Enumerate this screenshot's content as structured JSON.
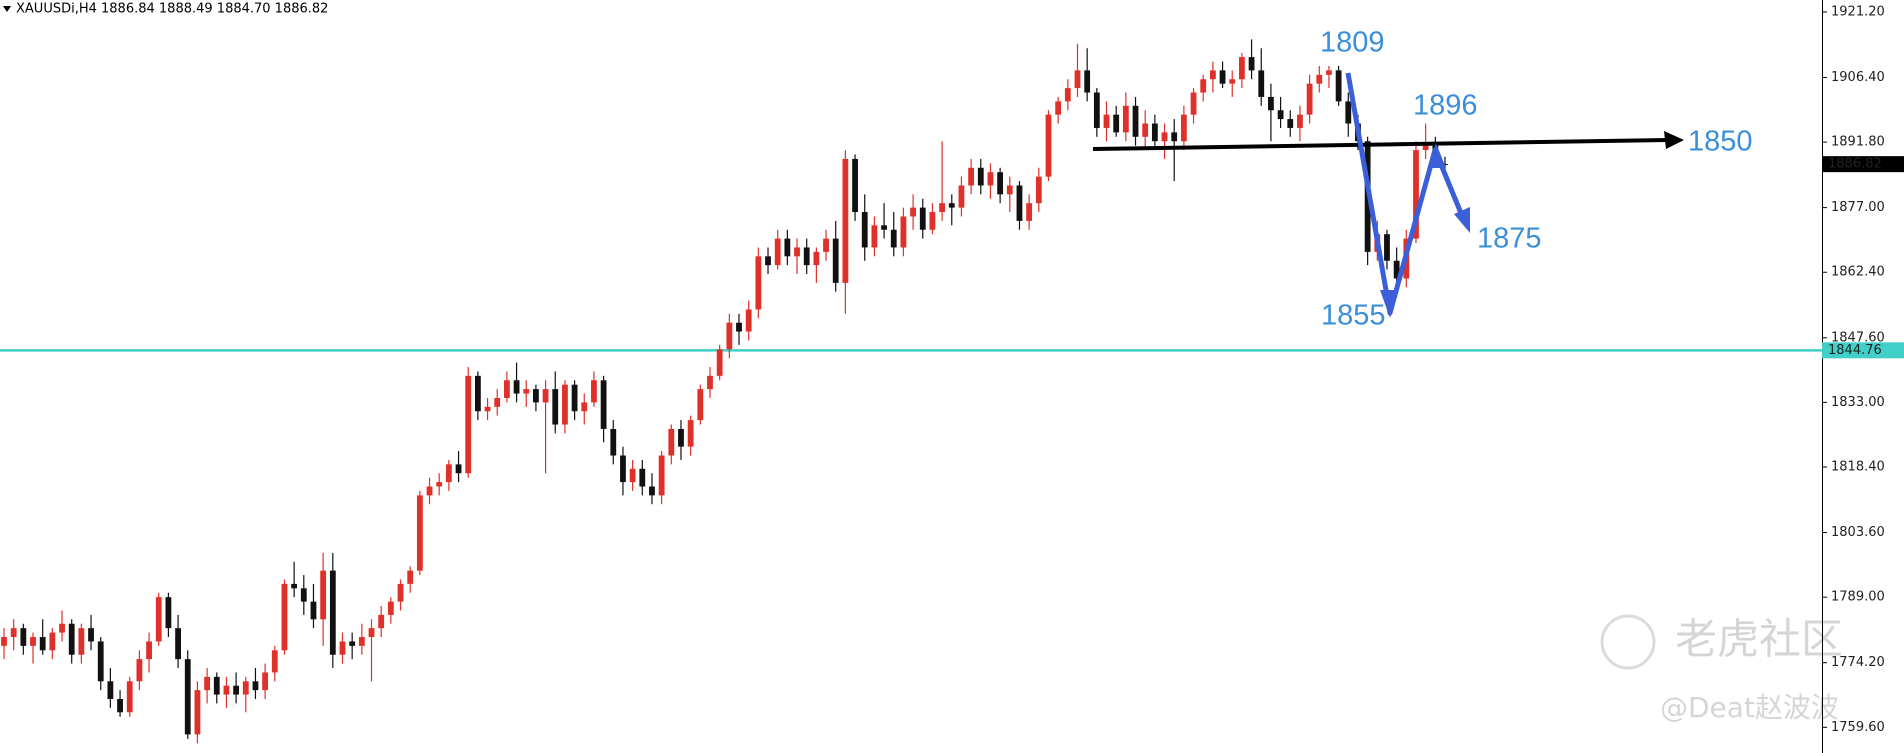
{
  "chart_data": {
    "type": "candlestick",
    "title": "XAUUSDi,H4  1886.84 1888.49 1884.70 1886.82",
    "up_color": "#e0302a",
    "down_color": "#111111",
    "ylim": [
      1753.8,
      1923.9
    ],
    "yticks": [
      {
        "value": 1921.2,
        "label": "1921.20"
      },
      {
        "value": 1906.4,
        "label": "1906.40"
      },
      {
        "value": 1891.8,
        "label": "1891.80"
      },
      {
        "value": 1877,
        "label": "1877.00"
      },
      {
        "value": 1862.4,
        "label": "1862.40"
      },
      {
        "value": 1847.6,
        "label": "1847.60"
      },
      {
        "value": 1833,
        "label": "1833.00"
      },
      {
        "value": 1818.4,
        "label": "1818.40"
      },
      {
        "value": 1803.6,
        "label": "1803.60"
      },
      {
        "value": 1789,
        "label": "1789.00"
      },
      {
        "value": 1774.2,
        "label": "1774.20"
      },
      {
        "value": 1759.6,
        "label": "1759.60"
      }
    ],
    "reference_line": {
      "value": 1844.76,
      "color": "#40d0c8"
    },
    "last_price": 1886.82,
    "annotations": [
      "1809",
      "1896",
      "1850",
      "1875",
      "1855"
    ],
    "ohlc": [
      [
        1778,
        1782,
        1775,
        1780
      ],
      [
        1780,
        1784,
        1777,
        1782
      ],
      [
        1782,
        1783,
        1776,
        1778
      ],
      [
        1778,
        1781,
        1774,
        1780
      ],
      [
        1780,
        1784,
        1776,
        1777
      ],
      [
        1777,
        1782,
        1775,
        1781
      ],
      [
        1781,
        1786,
        1779,
        1783
      ],
      [
        1783,
        1784,
        1774,
        1776
      ],
      [
        1776,
        1783,
        1774,
        1782
      ],
      [
        1782,
        1785,
        1777,
        1779
      ],
      [
        1779,
        1780,
        1768,
        1770
      ],
      [
        1770,
        1773,
        1764,
        1766
      ],
      [
        1766,
        1768,
        1762,
        1763
      ],
      [
        1763,
        1771,
        1762,
        1770
      ],
      [
        1770,
        1777,
        1768,
        1775
      ],
      [
        1775,
        1781,
        1772,
        1779
      ],
      [
        1779,
        1790,
        1778,
        1789
      ],
      [
        1789,
        1790,
        1780,
        1782
      ],
      [
        1782,
        1785,
        1773,
        1775
      ],
      [
        1775,
        1777,
        1757,
        1758
      ],
      [
        1758,
        1770,
        1756,
        1768
      ],
      [
        1768,
        1773,
        1765,
        1771
      ],
      [
        1771,
        1772,
        1765,
        1767
      ],
      [
        1767,
        1771,
        1764,
        1769
      ],
      [
        1769,
        1772,
        1765,
        1767
      ],
      [
        1767,
        1771,
        1763,
        1770
      ],
      [
        1770,
        1773,
        1766,
        1768
      ],
      [
        1768,
        1774,
        1766,
        1772
      ],
      [
        1772,
        1778,
        1770,
        1777
      ],
      [
        1777,
        1793,
        1776,
        1792
      ],
      [
        1792,
        1797,
        1789,
        1791
      ],
      [
        1791,
        1794,
        1785,
        1788
      ],
      [
        1788,
        1792,
        1782,
        1784
      ],
      [
        1784,
        1799,
        1778,
        1795
      ],
      [
        1795,
        1799,
        1773,
        1776
      ],
      [
        1776,
        1781,
        1774,
        1779
      ],
      [
        1779,
        1781,
        1775,
        1778
      ],
      [
        1778,
        1783,
        1776,
        1780
      ],
      [
        1780,
        1784,
        1770,
        1782
      ],
      [
        1782,
        1787,
        1780,
        1785
      ],
      [
        1785,
        1789,
        1783,
        1788
      ],
      [
        1788,
        1793,
        1786,
        1792
      ],
      [
        1792,
        1796,
        1790,
        1795
      ],
      [
        1795,
        1813,
        1794,
        1812
      ],
      [
        1812,
        1816,
        1810,
        1814
      ],
      [
        1814,
        1817,
        1812,
        1815
      ],
      [
        1815,
        1820,
        1813,
        1819
      ],
      [
        1819,
        1822,
        1815,
        1817
      ],
      [
        1817,
        1841,
        1816,
        1839
      ],
      [
        1839,
        1840,
        1829,
        1831
      ],
      [
        1831,
        1834,
        1829,
        1832
      ],
      [
        1832,
        1836,
        1830,
        1834
      ],
      [
        1834,
        1840,
        1833,
        1838
      ],
      [
        1838,
        1842,
        1833,
        1835
      ],
      [
        1835,
        1838,
        1832,
        1836
      ],
      [
        1836,
        1837,
        1831,
        1833
      ],
      [
        1833,
        1838,
        1817,
        1836
      ],
      [
        1836,
        1840,
        1826,
        1828
      ],
      [
        1828,
        1838,
        1826,
        1837
      ],
      [
        1837,
        1838,
        1829,
        1831
      ],
      [
        1831,
        1835,
        1828,
        1833
      ],
      [
        1833,
        1840,
        1832,
        1838
      ],
      [
        1838,
        1839,
        1824,
        1827
      ],
      [
        1827,
        1829,
        1819,
        1821
      ],
      [
        1821,
        1823,
        1812,
        1815
      ],
      [
        1815,
        1820,
        1813,
        1818
      ],
      [
        1818,
        1820,
        1812,
        1814
      ],
      [
        1814,
        1817,
        1810,
        1812
      ],
      [
        1812,
        1822,
        1810,
        1821
      ],
      [
        1821,
        1828,
        1819,
        1827
      ],
      [
        1827,
        1829,
        1820,
        1823
      ],
      [
        1823,
        1830,
        1821,
        1829
      ],
      [
        1829,
        1837,
        1828,
        1836
      ],
      [
        1836,
        1841,
        1834,
        1839
      ],
      [
        1839,
        1846,
        1838,
        1845
      ],
      [
        1845,
        1853,
        1843,
        1851
      ],
      [
        1851,
        1853,
        1846,
        1849
      ],
      [
        1849,
        1856,
        1847,
        1854
      ],
      [
        1854,
        1868,
        1852,
        1866
      ],
      [
        1866,
        1868,
        1862,
        1864
      ],
      [
        1864,
        1872,
        1863,
        1870
      ],
      [
        1870,
        1872,
        1864,
        1866
      ],
      [
        1866,
        1870,
        1862,
        1868
      ],
      [
        1868,
        1870,
        1862,
        1864
      ],
      [
        1864,
        1868,
        1860,
        1867
      ],
      [
        1867,
        1872,
        1865,
        1870
      ],
      [
        1870,
        1874,
        1858,
        1860
      ],
      [
        1860,
        1890,
        1853,
        1888
      ],
      [
        1888,
        1889,
        1874,
        1876
      ],
      [
        1876,
        1880,
        1865,
        1868
      ],
      [
        1868,
        1875,
        1866,
        1873
      ],
      [
        1873,
        1878,
        1870,
        1872
      ],
      [
        1872,
        1876,
        1866,
        1868
      ],
      [
        1868,
        1877,
        1866,
        1875
      ],
      [
        1875,
        1880,
        1872,
        1877
      ],
      [
        1877,
        1879,
        1870,
        1872
      ],
      [
        1872,
        1878,
        1871,
        1876
      ],
      [
        1876,
        1892,
        1874,
        1878
      ],
      [
        1878,
        1880,
        1873,
        1877
      ],
      [
        1877,
        1884,
        1875,
        1882
      ],
      [
        1882,
        1888,
        1880,
        1886
      ],
      [
        1886,
        1888,
        1880,
        1882
      ],
      [
        1882,
        1887,
        1879,
        1885
      ],
      [
        1885,
        1886,
        1878,
        1880
      ],
      [
        1880,
        1884,
        1876,
        1882
      ],
      [
        1882,
        1883,
        1872,
        1874
      ],
      [
        1874,
        1880,
        1872,
        1878
      ],
      [
        1878,
        1886,
        1876,
        1884
      ],
      [
        1884,
        1899,
        1883,
        1898
      ],
      [
        1898,
        1902,
        1896,
        1901
      ],
      [
        1901,
        1906,
        1899,
        1904
      ],
      [
        1904,
        1914,
        1902,
        1908
      ],
      [
        1908,
        1913,
        1901,
        1903
      ],
      [
        1903,
        1904,
        1893,
        1895
      ],
      [
        1895,
        1901,
        1892,
        1898
      ],
      [
        1898,
        1900,
        1893,
        1894
      ],
      [
        1894,
        1903,
        1892,
        1900
      ],
      [
        1900,
        1902,
        1891,
        1893
      ],
      [
        1893,
        1899,
        1890,
        1896
      ],
      [
        1896,
        1898,
        1890,
        1892
      ],
      [
        1892,
        1896,
        1888,
        1894
      ],
      [
        1894,
        1897,
        1883,
        1892
      ],
      [
        1892,
        1900,
        1890,
        1898
      ],
      [
        1898,
        1904,
        1896,
        1903
      ],
      [
        1903,
        1907,
        1901,
        1906
      ],
      [
        1906,
        1910,
        1903,
        1908
      ],
      [
        1908,
        1910,
        1904,
        1905
      ],
      [
        1905,
        1908,
        1902,
        1906
      ],
      [
        1906,
        1912,
        1904,
        1911
      ],
      [
        1911,
        1915,
        1906,
        1908
      ],
      [
        1908,
        1913,
        1900,
        1902
      ],
      [
        1902,
        1905,
        1892,
        1899
      ],
      [
        1899,
        1902,
        1895,
        1897
      ],
      [
        1897,
        1899,
        1893,
        1895
      ],
      [
        1895,
        1900,
        1892,
        1898
      ],
      [
        1898,
        1907,
        1896,
        1905
      ],
      [
        1905,
        1909,
        1903,
        1907
      ],
      [
        1907,
        1909,
        1904,
        1908
      ],
      [
        1908,
        1909,
        1900,
        1901
      ],
      [
        1901,
        1903,
        1893,
        1896
      ],
      [
        1896,
        1898,
        1890,
        1892
      ],
      [
        1892,
        1893,
        1864,
        1867
      ],
      [
        1867,
        1874,
        1865,
        1871
      ],
      [
        1871,
        1872,
        1863,
        1865
      ],
      [
        1865,
        1868,
        1860,
        1861
      ],
      [
        1861,
        1872,
        1859,
        1870
      ],
      [
        1870,
        1892,
        1869,
        1890
      ],
      [
        1890,
        1896,
        1888,
        1891
      ],
      [
        1891,
        1893,
        1887,
        1889
      ],
      [
        1886.84,
        1888.49,
        1884.7,
        1886.82
      ]
    ]
  },
  "watermark": {
    "logo": "老虎社区",
    "author": "@Deat赵波波"
  }
}
